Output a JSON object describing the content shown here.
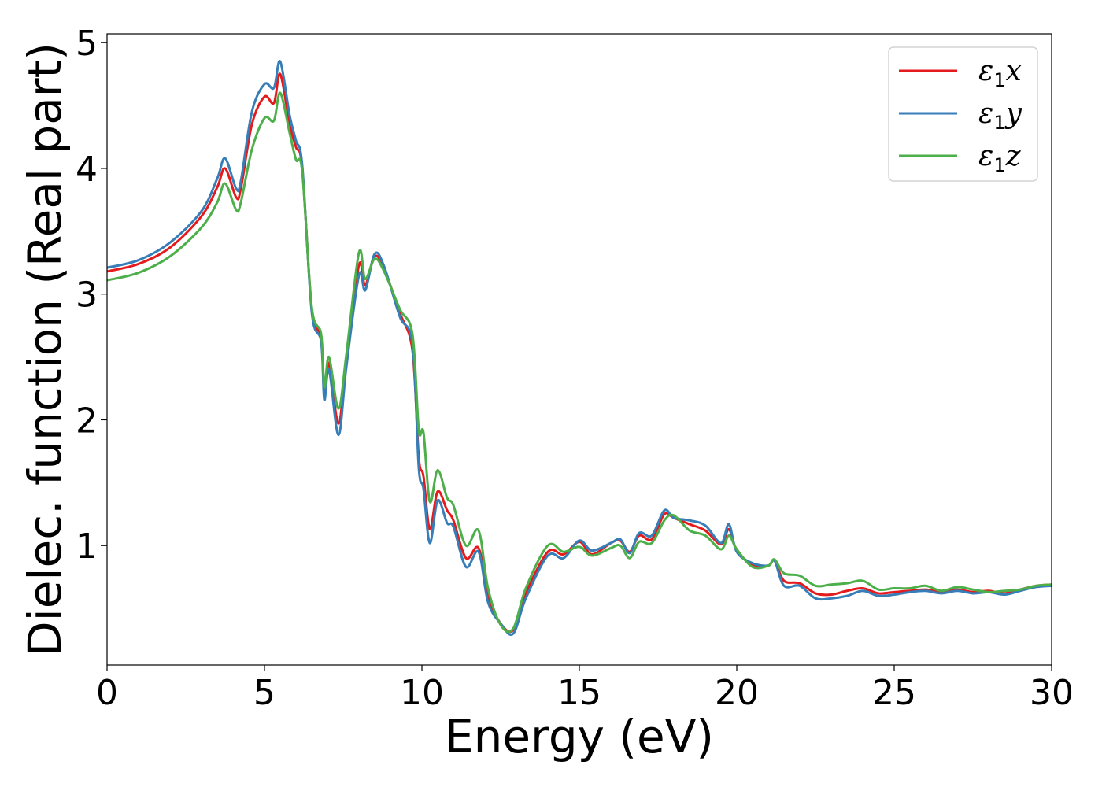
{
  "chart_data": {
    "type": "line",
    "title": "",
    "xlabel": "Energy (eV)",
    "ylabel": "Dielec. function (Real part)",
    "xlim": [
      0,
      30
    ],
    "ylim": [
      0.05,
      5.07
    ],
    "xticks": [
      0,
      5,
      10,
      15,
      20,
      25,
      30
    ],
    "yticks": [
      1,
      2,
      3,
      4,
      5
    ],
    "grid": false,
    "legend_position": "top-right",
    "x": [
      0,
      1,
      2,
      3,
      3.5,
      3.75,
      4.1,
      4.25,
      4.6,
      5.0,
      5.3,
      5.5,
      5.8,
      6.0,
      6.2,
      6.5,
      6.8,
      6.9,
      7.05,
      7.35,
      7.6,
      8.0,
      8.2,
      8.5,
      8.8,
      9.3,
      9.7,
      9.9,
      10.05,
      10.25,
      10.5,
      10.8,
      11.0,
      11.4,
      11.8,
      12.1,
      12.5,
      12.9,
      13.3,
      14.0,
      14.5,
      15.0,
      15.4,
      16.0,
      16.3,
      16.6,
      16.9,
      17.3,
      17.7,
      18.0,
      18.5,
      19.0,
      19.5,
      19.75,
      20.0,
      20.5,
      21.0,
      21.2,
      21.5,
      22.0,
      22.5,
      23.0,
      23.5,
      24.0,
      24.5,
      25.0,
      25.5,
      26.0,
      26.5,
      27.0,
      27.5,
      28.0,
      28.5,
      29.0,
      29.5,
      30.0
    ],
    "series": [
      {
        "name": "ε1x",
        "color": "#e41a1c",
        "values": [
          3.18,
          3.24,
          3.37,
          3.62,
          3.85,
          4.0,
          3.77,
          3.84,
          4.35,
          4.57,
          4.52,
          4.75,
          4.35,
          4.17,
          4.0,
          2.88,
          2.65,
          2.2,
          2.45,
          1.97,
          2.48,
          3.23,
          3.07,
          3.3,
          3.2,
          2.85,
          2.55,
          1.7,
          1.55,
          1.13,
          1.43,
          1.28,
          1.2,
          0.9,
          0.98,
          0.6,
          0.38,
          0.33,
          0.62,
          0.95,
          0.93,
          1.03,
          0.93,
          1.02,
          1.04,
          0.95,
          1.08,
          1.05,
          1.25,
          1.22,
          1.17,
          1.12,
          1.01,
          1.13,
          0.96,
          0.85,
          0.84,
          0.88,
          0.72,
          0.7,
          0.62,
          0.61,
          0.64,
          0.66,
          0.62,
          0.63,
          0.64,
          0.65,
          0.63,
          0.65,
          0.63,
          0.64,
          0.62,
          0.65,
          0.68,
          0.69
        ]
      },
      {
        "name": "ε1y",
        "color": "#377eb8",
        "values": [
          3.21,
          3.27,
          3.41,
          3.66,
          3.92,
          4.08,
          3.84,
          3.9,
          4.45,
          4.67,
          4.64,
          4.85,
          4.42,
          4.22,
          4.02,
          2.86,
          2.62,
          2.16,
          2.4,
          1.88,
          2.42,
          3.15,
          3.03,
          3.32,
          3.22,
          2.82,
          2.6,
          1.62,
          1.45,
          1.02,
          1.36,
          1.18,
          1.15,
          0.83,
          0.95,
          0.55,
          0.38,
          0.3,
          0.58,
          0.92,
          0.9,
          1.04,
          0.96,
          1.02,
          1.05,
          0.94,
          1.1,
          1.08,
          1.28,
          1.22,
          1.2,
          1.16,
          1.02,
          1.17,
          0.95,
          0.86,
          0.84,
          0.88,
          0.68,
          0.68,
          0.58,
          0.58,
          0.6,
          0.64,
          0.6,
          0.61,
          0.63,
          0.64,
          0.62,
          0.64,
          0.62,
          0.63,
          0.61,
          0.64,
          0.67,
          0.68
        ]
      },
      {
        "name": "ε1z",
        "color": "#4daf4a",
        "values": [
          3.11,
          3.17,
          3.3,
          3.53,
          3.73,
          3.88,
          3.67,
          3.73,
          4.15,
          4.4,
          4.38,
          4.6,
          4.28,
          4.07,
          3.97,
          2.9,
          2.68,
          2.26,
          2.5,
          2.09,
          2.52,
          3.33,
          3.12,
          3.28,
          3.18,
          2.88,
          2.68,
          1.92,
          1.9,
          1.35,
          1.6,
          1.38,
          1.32,
          1.0,
          1.12,
          0.66,
          0.37,
          0.34,
          0.66,
          1.0,
          0.95,
          0.99,
          0.92,
          0.98,
          1.0,
          0.9,
          1.03,
          1.02,
          1.2,
          1.24,
          1.12,
          1.08,
          0.97,
          1.08,
          0.97,
          0.83,
          0.84,
          0.89,
          0.78,
          0.76,
          0.68,
          0.69,
          0.7,
          0.72,
          0.65,
          0.66,
          0.66,
          0.68,
          0.64,
          0.67,
          0.65,
          0.63,
          0.64,
          0.65,
          0.68,
          0.69
        ]
      }
    ]
  }
}
